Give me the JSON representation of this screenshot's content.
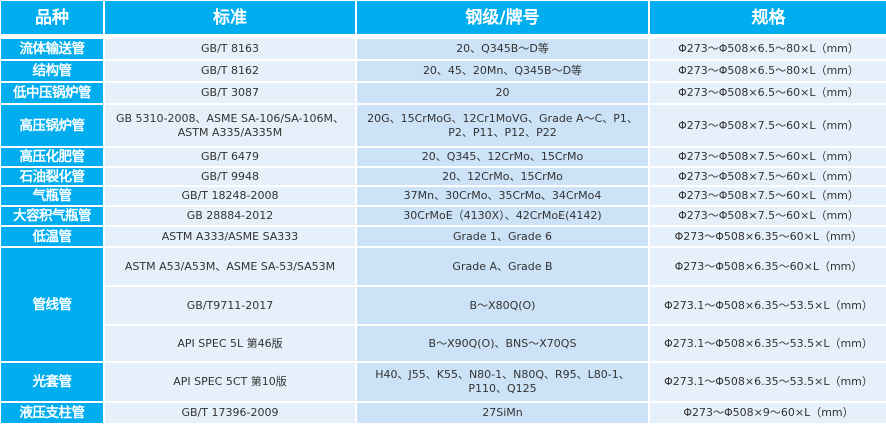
{
  "headers": [
    "品种",
    "标准",
    "钢级/牌号",
    "规格"
  ],
  "rows": [
    {
      "type": "流体输送管",
      "standard": "GB/T 8163",
      "grade": "20、Q345B～D等",
      "spec": "Φ273～Φ508×6.5～80×L（mm）"
    },
    {
      "type": "结构管",
      "standard": "GB/T 8162",
      "grade": "20、45、20Mn、Q345B～D等",
      "spec": "Φ273～Φ508×6.5～80×L（mm）"
    },
    {
      "type": "低中压锅炉管",
      "standard": "GB/T 3087",
      "grade": "20",
      "spec": "Φ273～Φ508×6.5～60×L（mm）"
    },
    {
      "type": "高压锅炉管",
      "standard": "GB 5310-2008、ASME SA-106/SA-106M、ASTM A335/A335M",
      "grade": "20G、15CrMoG、12Cr1MoVG、Grade A～C、P1、P2、P11、P12、P22",
      "spec": "Φ273～Φ508×7.5～60×L（mm）"
    },
    {
      "type": "高压化肥管",
      "standard": "GB/T 6479",
      "grade": "20、Q345、12CrMo、15CrMo",
      "spec": "Φ273～Φ508×7.5～60×L（mm）"
    },
    {
      "type": "石油裂化管",
      "standard": "GB/T 9948",
      "grade": "20、12CrMo、15CrMo",
      "spec": "Φ273～Φ508×7.5～60×L（mm）"
    },
    {
      "type": "气瓶管",
      "standard": "GB/T 18248-2008",
      "grade": "37Mn、30CrMo、35CrMo、34CrMo4",
      "spec": "Φ273～Φ508×7.5～60×L（mm）"
    },
    {
      "type": "大容积气瓶管",
      "standard": "GB 28884-2012",
      "grade": "30CrMoE（4130X）、42CrMoE(4142)",
      "spec": "Φ273～Φ508×7.5～60×L（mm）"
    },
    {
      "type": "低温管",
      "standard": "ASTM A333/ASME SA333",
      "grade": "Grade 1、Grade 6",
      "spec": "Φ273～Φ508×6.35～60×L（mm）"
    },
    {
      "type": "管线管",
      "standard": "ASTM A53/A53M、ASME SA-53/SA53M",
      "grade": "Grade A、Grade B",
      "spec": "Φ273～Φ508×6.35～60×L（mm）"
    },
    {
      "type": "",
      "standard": "GB/T9711-2017",
      "grade": "B～X80Q(O)",
      "spec": "Φ273.1～Φ508×6.35～53.5×L（mm）"
    },
    {
      "type": "",
      "standard": "API SPEC 5L 第46版",
      "grade": "B～X90Q(O)、BNS～X70QS",
      "spec": "Φ273.1～Φ508×6.35～53.5×L（mm）"
    },
    {
      "type": "光套管",
      "standard": "API SPEC 5CT 第10版",
      "grade": "H40、J55、K55、N80-1、N80Q、R95、L80-1、P110、Q125",
      "spec": "Φ273.1～Φ508×6.35～53.5×L（mm）"
    },
    {
      "type": "液压支柱管",
      "standard": "GB/T 17396-2009",
      "grade": "27SiMn",
      "spec": "Φ273～Φ508×9～60×L（mm）"
    }
  ]
}
